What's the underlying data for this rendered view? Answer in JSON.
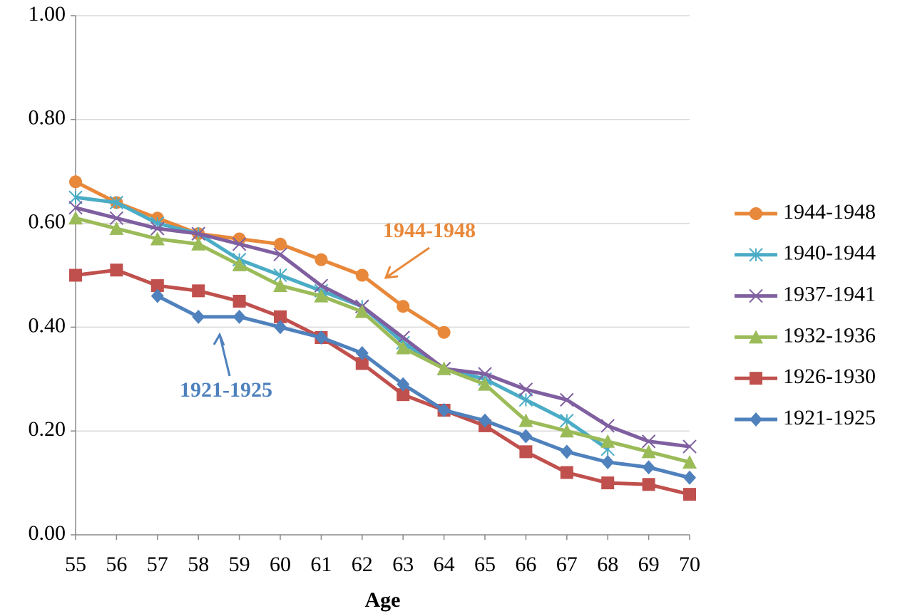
{
  "chart_data": {
    "type": "line",
    "x_label": "Age",
    "x": [
      55,
      56,
      57,
      58,
      59,
      60,
      61,
      62,
      63,
      64,
      65,
      66,
      67,
      68,
      69,
      70
    ],
    "xlim": [
      55,
      70
    ],
    "xticks": [
      55,
      56,
      57,
      58,
      59,
      60,
      61,
      62,
      63,
      64,
      65,
      66,
      67,
      68,
      69,
      70
    ],
    "ylim": [
      0,
      1
    ],
    "yticks": [
      {
        "value": 0,
        "label": "0.00"
      },
      {
        "value": 0.2,
        "label": "0.20"
      },
      {
        "value": 0.4,
        "label": "0.40"
      },
      {
        "value": 0.6,
        "label": "0.60"
      },
      {
        "value": 0.8,
        "label": "0.80"
      },
      {
        "value": 1,
        "label": "1.00"
      }
    ],
    "grid": true,
    "legend": "right",
    "series": [
      {
        "name": "1944-1948",
        "color": "#e8883a",
        "marker": "circle",
        "values": [
          0.68,
          0.64,
          0.61,
          0.58,
          0.57,
          0.56,
          0.53,
          0.5,
          0.44,
          0.39,
          null,
          null,
          null,
          null,
          null,
          null
        ]
      },
      {
        "name": "1940-1944",
        "color": "#4bacc6",
        "marker": "star",
        "values": [
          0.65,
          0.64,
          0.6,
          0.58,
          0.53,
          0.5,
          0.47,
          0.44,
          0.37,
          0.32,
          0.3,
          0.26,
          0.22,
          0.165,
          null,
          null
        ]
      },
      {
        "name": "1937-1941",
        "color": "#7f5fa0",
        "marker": "x",
        "values": [
          0.63,
          0.61,
          0.59,
          0.58,
          0.56,
          0.54,
          0.48,
          0.44,
          0.38,
          0.32,
          0.31,
          0.28,
          0.26,
          0.21,
          0.18,
          0.17
        ]
      },
      {
        "name": "1932-1936",
        "color": "#9bbb59",
        "marker": "triangle",
        "values": [
          0.61,
          0.59,
          0.57,
          0.56,
          0.52,
          0.48,
          0.46,
          0.43,
          0.36,
          0.32,
          0.29,
          0.22,
          0.2,
          0.18,
          0.16,
          0.14
        ]
      },
      {
        "name": "1926-1930",
        "color": "#c0504d",
        "marker": "square",
        "values": [
          0.5,
          0.51,
          0.48,
          0.47,
          0.45,
          0.42,
          0.38,
          0.33,
          0.27,
          0.24,
          0.21,
          0.16,
          0.12,
          0.1,
          0.097,
          0.078
        ]
      },
      {
        "name": "1921-1925",
        "color": "#4f81bd",
        "marker": "diamond",
        "values": [
          null,
          null,
          0.46,
          0.42,
          0.42,
          0.4,
          0.38,
          0.35,
          0.29,
          0.24,
          0.22,
          0.19,
          0.16,
          0.14,
          0.13,
          0.11
        ]
      }
    ],
    "annotations": [
      {
        "text": "1944-1948",
        "color": "#e8883a"
      },
      {
        "text": "1921-1925",
        "color": "#4f81bd"
      }
    ]
  }
}
